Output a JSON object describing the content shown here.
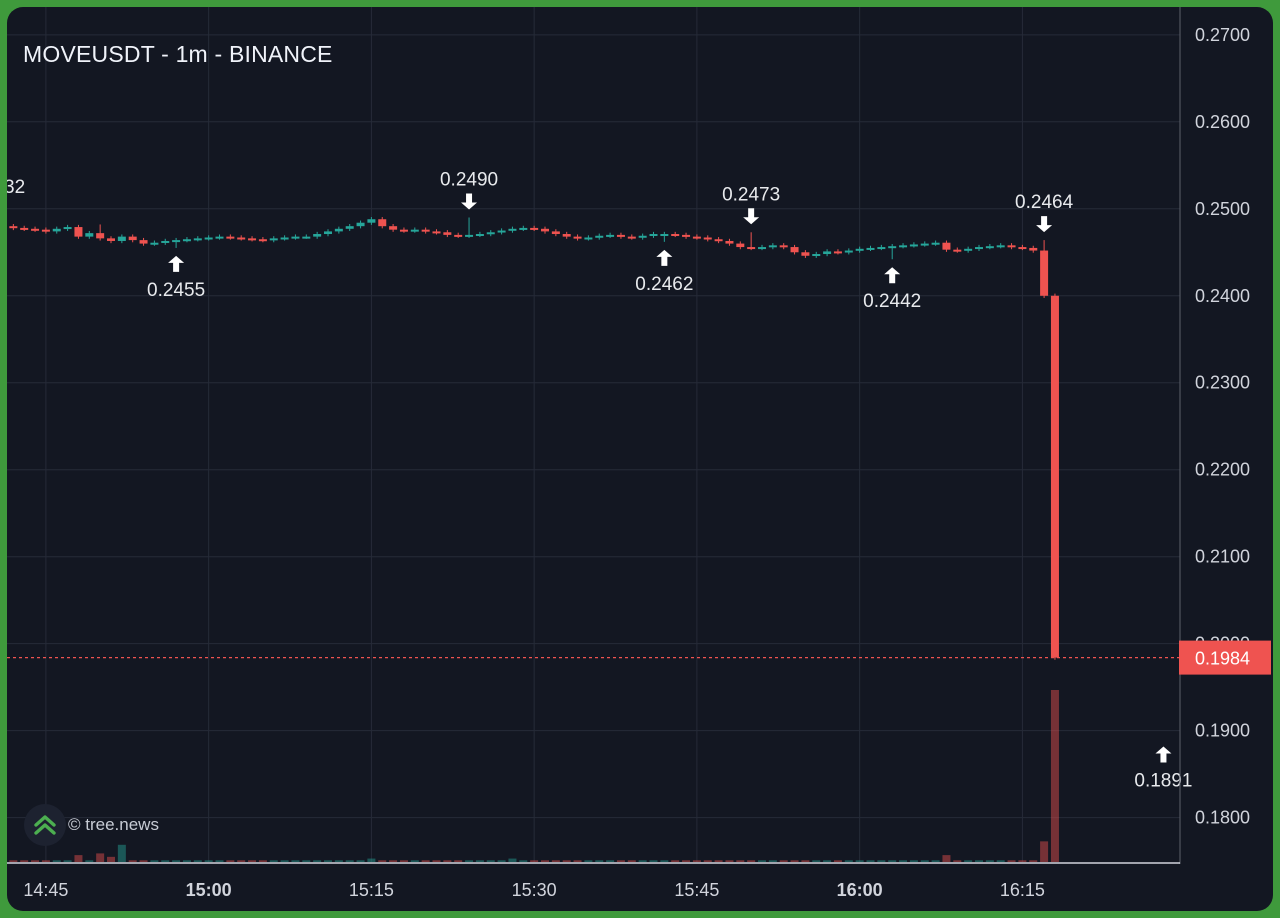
{
  "title": "MOVEUSDT - 1m - BINANCE",
  "watermark": "© tree.news",
  "colors": {
    "background": "#131722",
    "up": "#26a69a",
    "down": "#ef5350",
    "grid": "#262b38",
    "text": "#d1d4dc"
  },
  "chart_data": {
    "type": "candlestick",
    "symbol": "MOVEUSDT",
    "interval": "1m",
    "exchange": "BINANCE",
    "x_ticks": [
      {
        "label": "14:45",
        "bold": false
      },
      {
        "label": "15:00",
        "bold": true
      },
      {
        "label": "15:15",
        "bold": false
      },
      {
        "label": "15:30",
        "bold": false
      },
      {
        "label": "15:45",
        "bold": false
      },
      {
        "label": "16:00",
        "bold": true
      },
      {
        "label": "16:15",
        "bold": false
      }
    ],
    "y_ticks": [
      "0.2700",
      "0.2600",
      "0.2500",
      "0.2400",
      "0.2300",
      "0.2200",
      "0.2100",
      "0.2000",
      "0.1900",
      "0.1800"
    ],
    "y_range": [
      0.1749,
      0.2732
    ],
    "grid": true,
    "current_price": "0.1984",
    "extremes": [
      {
        "minute": -1.5,
        "price": 0.2482,
        "label": "32",
        "type": "high"
      },
      {
        "minute": 6,
        "price": 0.2455,
        "label": "0.2455",
        "type": "low"
      },
      {
        "minute": 33,
        "price": 0.249,
        "label": "0.2490",
        "type": "high"
      },
      {
        "minute": 51,
        "price": 0.2462,
        "label": "0.2462",
        "type": "low"
      },
      {
        "minute": 59,
        "price": 0.2473,
        "label": "0.2473",
        "type": "high"
      },
      {
        "minute": 72,
        "price": 0.2442,
        "label": "0.2442",
        "type": "low"
      },
      {
        "minute": 86,
        "price": 0.2464,
        "label": "0.2464",
        "type": "high"
      },
      {
        "minute": 97,
        "price": 0.1891,
        "label": "0.1891",
        "type": "low"
      }
    ],
    "candle_closes": [
      0.2478,
      0.2477,
      0.2476,
      0.2474,
      0.2477,
      0.2479,
      0.2468,
      0.2472,
      0.2466,
      0.2463,
      0.2468,
      0.2464,
      0.246,
      0.2461,
      0.2463,
      0.2464,
      0.2465,
      0.2466,
      0.2467,
      0.2468,
      0.2467,
      0.2466,
      0.2465,
      0.2464,
      0.2466,
      0.2467,
      0.2468,
      0.2468,
      0.2471,
      0.2474,
      0.2477,
      0.248,
      0.2484,
      0.2488,
      0.248,
      0.2476,
      0.2475,
      0.2476,
      0.2474,
      0.2473,
      0.247,
      0.2469,
      0.247,
      0.2471,
      0.2473,
      0.2475,
      0.2477,
      0.2478,
      0.2477,
      0.2474,
      0.2471,
      0.2468,
      0.2466,
      0.2467,
      0.2469,
      0.247,
      0.2468,
      0.2467,
      0.2469,
      0.2471,
      0.2471,
      0.247,
      0.2468,
      0.2467,
      0.2465,
      0.2463,
      0.246,
      0.2456,
      0.2455,
      0.2456,
      0.2458,
      0.2456,
      0.245,
      0.2446,
      0.2448,
      0.2451,
      0.245,
      0.2452,
      0.2454,
      0.2455,
      0.2456,
      0.2457,
      0.2458,
      0.2459,
      0.246,
      0.2461,
      0.2453,
      0.2452,
      0.2454,
      0.2456,
      0.2457,
      0.2458,
      0.2456,
      0.2455,
      0.2452,
      0.24,
      0.1984
    ],
    "volumes": [
      1,
      1,
      1,
      1,
      1,
      1,
      4,
      1,
      5,
      3,
      10,
      1,
      1,
      1,
      1,
      1,
      1,
      1,
      1,
      1,
      1,
      1,
      1,
      1,
      1,
      1,
      1,
      1,
      1,
      1,
      1,
      1,
      1,
      2,
      1,
      1,
      1,
      1,
      1,
      1,
      1,
      1,
      1,
      1,
      1,
      1,
      2,
      1,
      1,
      1,
      1,
      1,
      1,
      1,
      1,
      1,
      1,
      1,
      1,
      1,
      1,
      1,
      1,
      1,
      1,
      1,
      1,
      1,
      1,
      1,
      1,
      1,
      1,
      1,
      1,
      1,
      1,
      1,
      1,
      1,
      1,
      1,
      1,
      1,
      1,
      1,
      4,
      1,
      1,
      1,
      1,
      1,
      1,
      1,
      1,
      12,
      100
    ]
  }
}
